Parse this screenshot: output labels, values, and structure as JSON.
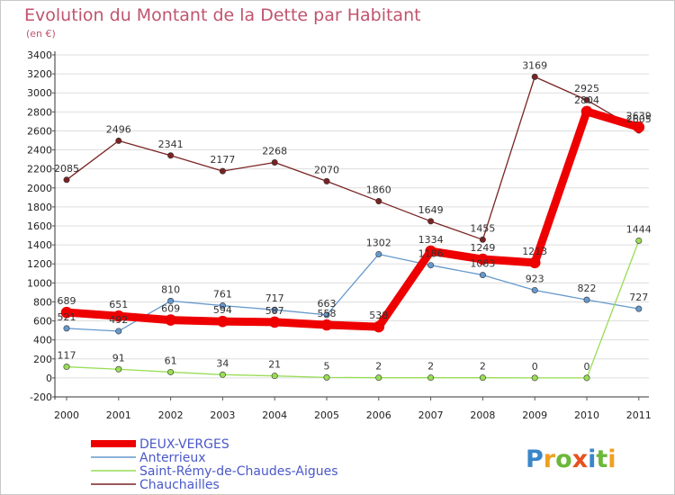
{
  "chart_data": {
    "type": "line",
    "title": "Evolution du Montant de la Dette par Habitant",
    "subtitle": "(en €)",
    "x": [
      "2000",
      "2001",
      "2002",
      "2003",
      "2004",
      "2005",
      "2006",
      "2007",
      "2008",
      "2009",
      "2010",
      "2011"
    ],
    "ylim": [
      -200,
      3400
    ],
    "yticks": [
      -200,
      0,
      200,
      400,
      600,
      800,
      1000,
      1200,
      1400,
      1600,
      1800,
      2000,
      2200,
      2400,
      2600,
      2800,
      3000,
      3200,
      3400
    ],
    "grid": "horizontal",
    "legend_position": "bottom-left",
    "series": [
      {
        "name": "DEUX-VERGES",
        "color": "#ee0000",
        "emphasis": true,
        "values": [
          689,
          651,
          609,
          594,
          587,
          558,
          538,
          1334,
          1249,
          1213,
          2804,
          2639
        ]
      },
      {
        "name": "Anterrieux",
        "color": "#6699cc",
        "emphasis": false,
        "values": [
          521,
          492,
          810,
          761,
          717,
          663,
          1302,
          1186,
          1083,
          923,
          822,
          727
        ]
      },
      {
        "name": "Saint-Rémy-de-Chaudes-Aigues",
        "color": "#99dd55",
        "emphasis": false,
        "values": [
          117,
          91,
          61,
          34,
          21,
          5,
          2,
          2,
          2,
          0,
          0,
          1444
        ]
      },
      {
        "name": "Chauchailles",
        "color": "#7a2323",
        "emphasis": false,
        "values": [
          2085,
          2496,
          2341,
          2177,
          2268,
          2070,
          1860,
          1649,
          1455,
          3169,
          2925,
          2605
        ]
      }
    ]
  },
  "logo": {
    "letters": [
      "P",
      "r",
      "o",
      "x",
      "i",
      "t",
      "i"
    ],
    "colors": [
      "#3a86c8",
      "#f0a020",
      "#6cb83a",
      "#e8501e",
      "#3a86c8",
      "#6cb83a",
      "#f0a020"
    ]
  }
}
